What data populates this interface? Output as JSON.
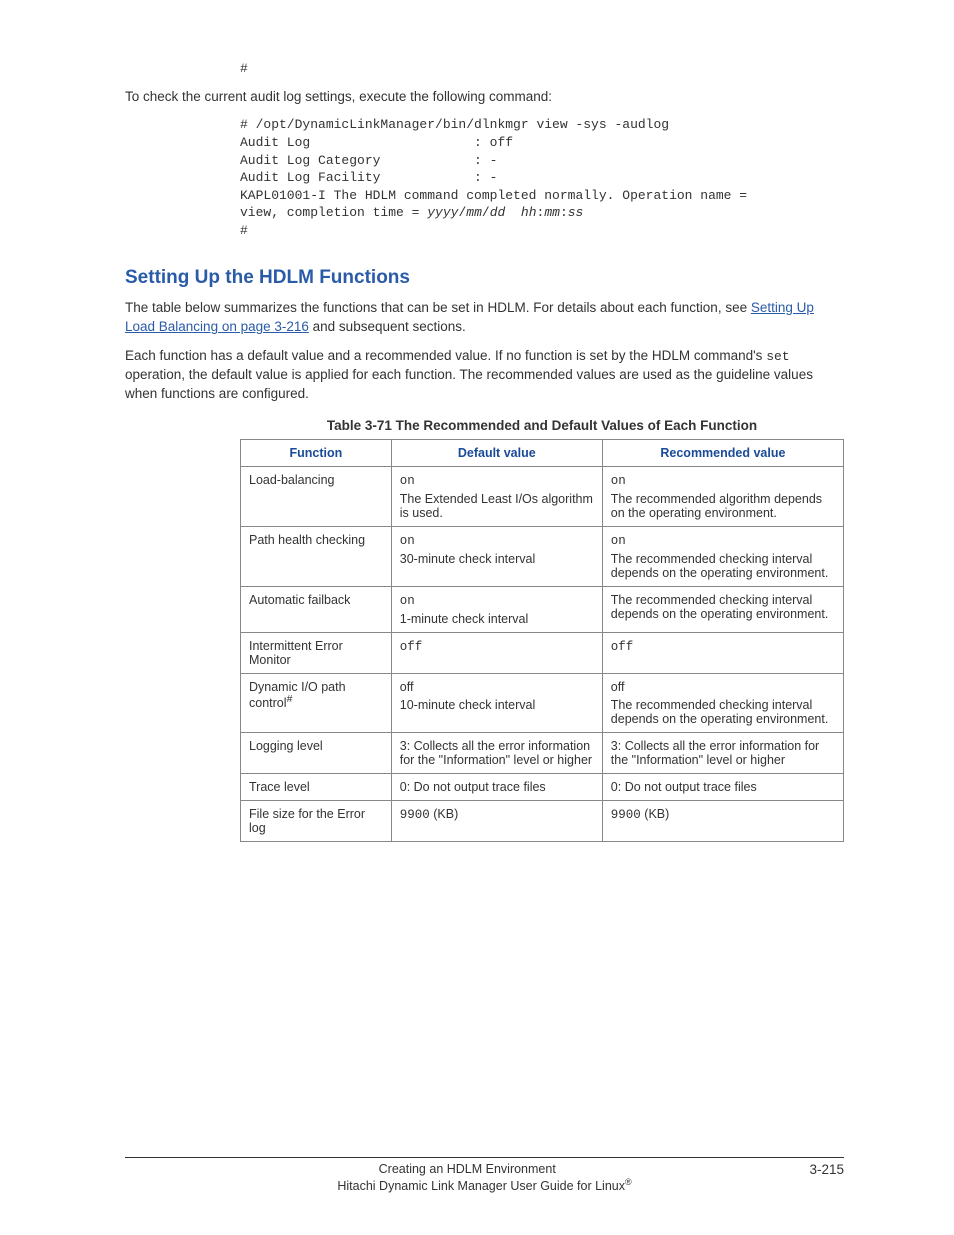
{
  "intro": {
    "hash": "#",
    "lead": "To check the current audit log settings, execute the following command:",
    "code_l1": "# /opt/DynamicLinkManager/bin/dlnkmgr view -sys -audlog",
    "code_l2": "Audit Log                     : off",
    "code_l3": "Audit Log Category            : -",
    "code_l4": "Audit Log Facility            : -",
    "code_l5a": "KAPL01001-I The HDLM command completed normally. Operation name = ",
    "code_l5b": "view, completion time = ",
    "code_italic": "yyyy",
    "slash1": "/",
    "code_mm1": "mm",
    "slash2": "/",
    "code_dd": "dd",
    "sp": "  ",
    "code_hh": "hh",
    "colon1": ":",
    "code_mm2": "mm",
    "colon2": ":",
    "code_ss": "ss",
    "code_end": "#"
  },
  "section": {
    "title": "Setting Up the HDLM Functions",
    "p1a": "The table below summarizes the functions that can be set in HDLM. For details about each function, see ",
    "p1_link": "Setting Up Load Balancing on page 3-216",
    "p1b": " and subsequent sections.",
    "p2a": "Each function has a default value and a recommended value. If no function is set by the HDLM command's ",
    "p2_code": "set",
    "p2b": " operation, the default value is applied for each function. The recommended values are used as the guideline values when functions are configured."
  },
  "table": {
    "caption": "Table 3-71 The Recommended and Default Values of Each Function",
    "h1": "Function",
    "h2": "Default value",
    "h3": "Recommended value",
    "rows": [
      {
        "func": "Load-balancing",
        "def_code": "on",
        "def_text": "The Extended Least I/Os algorithm is used.",
        "rec_code": "on",
        "rec_text": "The recommended algorithm depends on the operating environment."
      },
      {
        "func": "Path health checking",
        "def_code": "on",
        "def_text": "30-minute check interval",
        "rec_code": "on",
        "rec_text": "The recommended checking interval depends on the operating environment."
      },
      {
        "func": "Automatic failback",
        "def_code": "on",
        "def_text": "1-minute check interval",
        "rec_code": "",
        "rec_text": "The recommended checking interval depends on the operating environment."
      },
      {
        "func": "Intermittent Error Monitor",
        "def_code": "off",
        "def_text": "",
        "rec_code": "off",
        "rec_text": ""
      },
      {
        "func_a": "Dynamic I/O path control",
        "func_sup": "#",
        "def_code": "",
        "def_plain": "off",
        "def_text": "10-minute check interval",
        "rec_plain": "off",
        "rec_text": "The recommended checking interval depends on the operating environment."
      },
      {
        "func": "Logging level",
        "def_text_only": "3: Collects all the error information for the \"Information\" level or higher",
        "rec_text_only": "3: Collects all the error information for the \"Information\" level or higher"
      },
      {
        "func": "Trace level",
        "def_text_only": "0: Do not output trace files",
        "rec_text_only": "0: Do not output trace files"
      },
      {
        "func": "File size for the Error log",
        "def_code": "9900",
        "def_suffix": " (KB)",
        "rec_code": "9900",
        "rec_suffix": " (KB)"
      }
    ]
  },
  "footer": {
    "chapter": "Creating an HDLM Environment",
    "page": "3-215",
    "book_a": "Hitachi Dynamic Link Manager User Guide for Linux",
    "reg": "®"
  }
}
